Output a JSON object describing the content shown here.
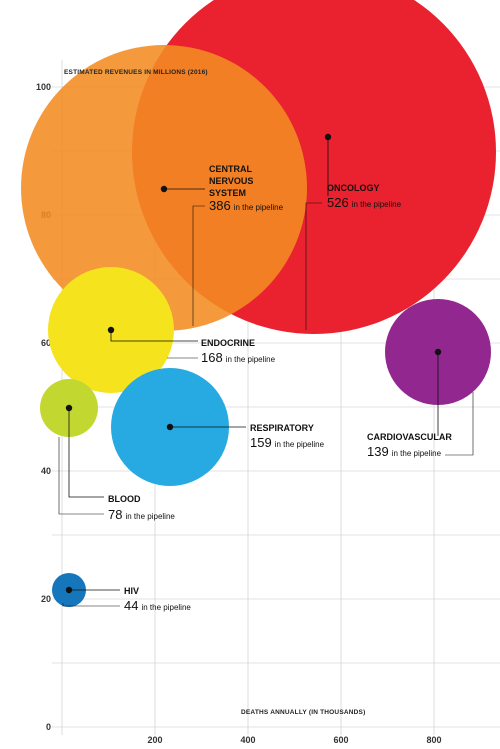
{
  "chart_data": {
    "type": "bubble",
    "ylabel": "ESTIMATED REVENUES IN MILLIONS (2016)",
    "xlabel": "DEATHS ANNUALLY (IN THOUSANDS)",
    "xlim": [
      -20,
      930
    ],
    "ylim": [
      0,
      100
    ],
    "x_ticks": [
      "200",
      "400",
      "600",
      "800"
    ],
    "y_ticks": [
      "0",
      "20",
      "40",
      "60",
      "80",
      "100"
    ],
    "grid": true,
    "pipeline_suffix": "in the pipeline",
    "series": [
      {
        "name": "ONCOLOGY",
        "x": 570,
        "y": 92,
        "pipeline": 526,
        "color": "#ea212e"
      },
      {
        "name": "CENTRAL NERVOUS SYSTEM",
        "x": 215,
        "y": 84,
        "pipeline": 386,
        "color": "#f28c22"
      },
      {
        "name": "ENDOCRINE",
        "x": 100,
        "y": 61,
        "pipeline": 168,
        "color": "#f5e31e"
      },
      {
        "name": "RESPIRATORY",
        "x": 230,
        "y": 47,
        "pipeline": 159,
        "color": "#27aae1"
      },
      {
        "name": "CARDIOVASCULAR",
        "x": 810,
        "y": 58,
        "pipeline": 139,
        "color": "#92278f"
      },
      {
        "name": "BLOOD",
        "x": 10,
        "y": 49,
        "pipeline": 78,
        "color": "#c2d830"
      },
      {
        "name": "HIV",
        "x": 10,
        "y": 20.5,
        "pipeline": 44,
        "color": "#1576bc"
      }
    ]
  }
}
